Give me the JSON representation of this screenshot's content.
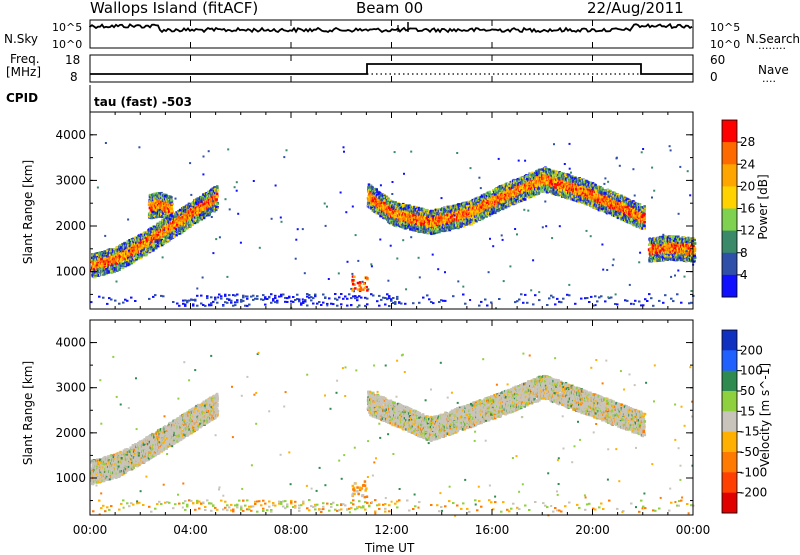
{
  "header": {
    "station": "Wallops Island (fitACF)",
    "beam": "Beam 00",
    "date": "22/Aug/2011"
  },
  "noise_panel": {
    "left_label": "N.Sky",
    "left_ticks": [
      "10^5",
      "10^0"
    ],
    "right_ticks": [
      "10^5",
      "10^0"
    ],
    "right_label": "N.Search",
    "right_marker": "........"
  },
  "freq_panel": {
    "left_label_line1": "Freq.",
    "left_label_line2": "[MHz]",
    "left_ticks": [
      "18",
      "8"
    ],
    "right_ticks": [
      "60",
      "0"
    ],
    "right_label": "Nave",
    "right_marker": "...."
  },
  "cpid_panel": {
    "label": "CPID",
    "text": "tau (fast) -503"
  },
  "chart_data": [
    {
      "type": "heatmap",
      "title": "",
      "ylabel": "Slant Range [km]",
      "ylim": [
        180,
        4500
      ],
      "yticks": [
        "1000",
        "2000",
        "3000",
        "4000"
      ],
      "colorbar_label": "Power [dB]",
      "colorbar_ticks": [
        "28",
        "24",
        "20",
        "16",
        "12",
        "8",
        "4"
      ],
      "colorbar_colors": [
        "#ff0000",
        "#ff6a00",
        "#ffa500",
        "#ffd200",
        "#7fd24f",
        "#3a8a6a",
        "#2f4fa8",
        "#1010ff"
      ],
      "features": [
        {
          "t_hours": [
            0.0,
            1.0,
            2.0,
            3.0,
            4.0,
            5.0
          ],
          "range_km": [
            1150,
            1300,
            1600,
            1950,
            2300,
            2650
          ],
          "level_db": 16
        },
        {
          "t_hours": [
            2.3,
            2.7,
            3.2
          ],
          "range_km": [
            2450,
            2500,
            2400
          ],
          "level_db": 20
        },
        {
          "t_hours": [
            11.0,
            12.0,
            13.5,
            15.0,
            16.5,
            18.0,
            19.5,
            21.0,
            22.0
          ],
          "range_km": [
            2700,
            2300,
            2100,
            2300,
            2700,
            3050,
            2800,
            2450,
            2200
          ],
          "level_db": 14
        },
        {
          "t_hours": [
            22.2,
            23.0,
            24.0
          ],
          "range_km": [
            1500,
            1550,
            1500
          ],
          "level_db": 10
        }
      ]
    },
    {
      "type": "heatmap",
      "title": "",
      "xlabel": "Time UT",
      "xticks": [
        "00:00",
        "04:00",
        "08:00",
        "12:00",
        "16:00",
        "20:00",
        "00:00"
      ],
      "ylabel": "Slant Range [km]",
      "ylim": [
        180,
        4500
      ],
      "yticks": [
        "1000",
        "2000",
        "3000",
        "4000"
      ],
      "colorbar_label": "Velocity [m s^-1]",
      "colorbar_ticks": [
        "200",
        "100",
        "50",
        "15",
        "-15",
        "-50",
        "-100",
        "-200"
      ],
      "colorbar_colors": [
        "#1030c0",
        "#2060ff",
        "#2f8a50",
        "#8fd03f",
        "#c8c4bc",
        "#ffb000",
        "#ff7a00",
        "#ff4000",
        "#e00000"
      ],
      "features": [
        {
          "t_hours": [
            0.0,
            1.0,
            2.0,
            3.0,
            4.0,
            5.0
          ],
          "range_km": [
            1150,
            1300,
            1600,
            1950,
            2300,
            2650
          ],
          "velocity": 0
        },
        {
          "t_hours": [
            11.0,
            13.5,
            16.5,
            18.0,
            22.0
          ],
          "range_km": [
            2700,
            2100,
            2700,
            3050,
            2200
          ],
          "velocity": 0
        }
      ]
    }
  ]
}
